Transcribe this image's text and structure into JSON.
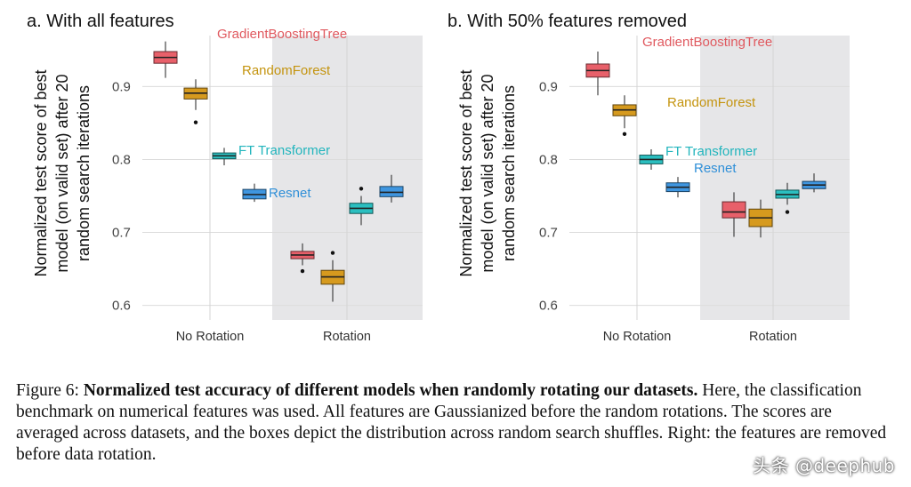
{
  "chart_data": [
    {
      "type": "box",
      "title": "a. With all features",
      "ylabel_lines": [
        "Normalized test score of best",
        "model (on valid set) after 20",
        "random search iterations"
      ],
      "categories": [
        "No Rotation",
        "Rotation"
      ],
      "shaded_category": "Rotation",
      "ylim": [
        0.58,
        0.97
      ],
      "yticks": [
        0.6,
        0.7,
        0.8,
        0.9
      ],
      "ytick_labels": [
        "0.6",
        "0.7",
        "0.8",
        "0.9"
      ],
      "series": [
        {
          "name": "GradientBoostingTree",
          "color": "#e8606a",
          "label_color": "#e0595f",
          "boxes": [
            {
              "min": 0.912,
              "q1": 0.932,
              "median": 0.94,
              "q3": 0.948,
              "max": 0.962,
              "outliers": []
            },
            {
              "min": 0.655,
              "q1": 0.664,
              "median": 0.669,
              "q3": 0.674,
              "max": 0.685,
              "outliers": [
                0.647
              ]
            }
          ]
        },
        {
          "name": "RandomForest",
          "color": "#d69a1e",
          "label_color": "#c4940f",
          "boxes": [
            {
              "min": 0.868,
              "q1": 0.883,
              "median": 0.891,
              "q3": 0.898,
              "max": 0.91,
              "outliers": [
                0.851
              ]
            },
            {
              "min": 0.605,
              "q1": 0.629,
              "median": 0.639,
              "q3": 0.648,
              "max": 0.662,
              "outliers": [
                0.672
              ]
            }
          ]
        },
        {
          "name": "FT Transformer",
          "color": "#2bbfc0",
          "label_color": "#22b5bd",
          "boxes": [
            {
              "min": 0.792,
              "q1": 0.801,
              "median": 0.805,
              "q3": 0.809,
              "max": 0.816,
              "outliers": []
            },
            {
              "min": 0.71,
              "q1": 0.726,
              "median": 0.733,
              "q3": 0.74,
              "max": 0.75,
              "outliers": [
                0.76
              ]
            }
          ]
        },
        {
          "name": "Resnet",
          "color": "#3f96e0",
          "label_color": "#2f8fd8",
          "boxes": [
            {
              "min": 0.742,
              "q1": 0.746,
              "median": 0.752,
              "q3": 0.759,
              "max": 0.767,
              "outliers": []
            },
            {
              "min": 0.741,
              "q1": 0.749,
              "median": 0.755,
              "q3": 0.763,
              "max": 0.779,
              "outliers": []
            }
          ]
        }
      ]
    },
    {
      "type": "box",
      "title": "b. With 50% features removed",
      "ylabel_lines": [
        "Normalized test score of best",
        "model (on valid set) after 20",
        "random search iterations"
      ],
      "categories": [
        "No Rotation",
        "Rotation"
      ],
      "shaded_category": "Rotation",
      "ylim": [
        0.58,
        0.97
      ],
      "yticks": [
        0.6,
        0.7,
        0.8,
        0.9
      ],
      "ytick_labels": [
        "0.6",
        "0.7",
        "0.8",
        "0.9"
      ],
      "series": [
        {
          "name": "GradientBoostingTree",
          "color": "#e8606a",
          "label_color": "#e0595f",
          "boxes": [
            {
              "min": 0.888,
              "q1": 0.913,
              "median": 0.922,
              "q3": 0.931,
              "max": 0.948,
              "outliers": []
            },
            {
              "min": 0.694,
              "q1": 0.72,
              "median": 0.728,
              "q3": 0.742,
              "max": 0.755,
              "outliers": []
            }
          ]
        },
        {
          "name": "RandomForest",
          "color": "#d69a1e",
          "label_color": "#c4940f",
          "boxes": [
            {
              "min": 0.843,
              "q1": 0.86,
              "median": 0.868,
              "q3": 0.875,
              "max": 0.888,
              "outliers": [
                0.835
              ]
            },
            {
              "min": 0.693,
              "q1": 0.708,
              "median": 0.72,
              "q3": 0.732,
              "max": 0.745,
              "outliers": []
            }
          ]
        },
        {
          "name": "FT Transformer",
          "color": "#2bbfc0",
          "label_color": "#22b5bd",
          "boxes": [
            {
              "min": 0.786,
              "q1": 0.794,
              "median": 0.8,
              "q3": 0.806,
              "max": 0.814,
              "outliers": []
            },
            {
              "min": 0.738,
              "q1": 0.747,
              "median": 0.752,
              "q3": 0.758,
              "max": 0.768,
              "outliers": [
                0.728
              ]
            }
          ]
        },
        {
          "name": "Resnet",
          "color": "#3f96e0",
          "label_color": "#2f8fd8",
          "boxes": [
            {
              "min": 0.748,
              "q1": 0.756,
              "median": 0.762,
              "q3": 0.768,
              "max": 0.776,
              "outliers": []
            },
            {
              "min": 0.755,
              "q1": 0.76,
              "median": 0.765,
              "q3": 0.77,
              "max": 0.781,
              "outliers": []
            }
          ]
        }
      ]
    }
  ],
  "caption": {
    "prefix": "Figure 6: ",
    "bold": "Normalized test accuracy of different models when randomly rotating our datasets.",
    "rest": "Here, the classification benchmark on numerical features was used. All features are Gaussianized before the random rotations. The scores are averaged across datasets, and the boxes depict the distribution across random search shuffles. Right: the features are removed before data rotation."
  },
  "watermark": "头条 @deephub"
}
